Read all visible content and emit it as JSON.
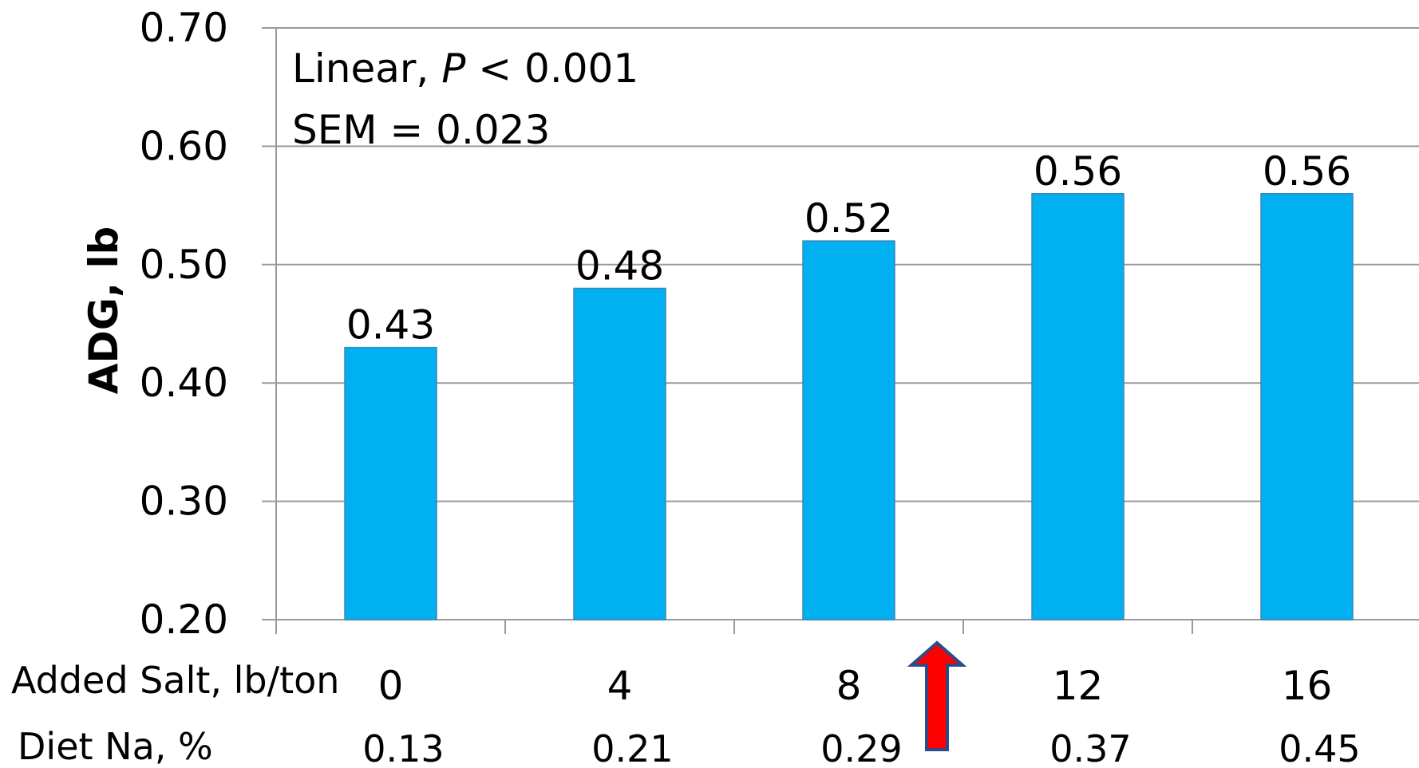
{
  "chart_data": {
    "type": "bar",
    "categories": [
      "0",
      "4",
      "8",
      "12",
      "16"
    ],
    "values": [
      0.43,
      0.48,
      0.52,
      0.56,
      0.56
    ],
    "value_labels": [
      "0.43",
      "0.48",
      "0.52",
      "0.56",
      "0.56"
    ],
    "secondary_categories": [
      "0.13",
      "0.21",
      "0.29",
      "0.37",
      "0.45"
    ],
    "row_labels": {
      "primary": "Added Salt, lb/ton",
      "secondary": "Diet Na, %"
    },
    "ylabel": "ADG, lb",
    "ylim": [
      0.2,
      0.7
    ],
    "yticks": [
      0.2,
      0.3,
      0.4,
      0.5,
      0.6,
      0.7
    ],
    "ytick_labels": [
      "0.20",
      "0.30",
      "0.40",
      "0.50",
      "0.60",
      "0.70"
    ],
    "annotations": {
      "line1_prefix": "Linear, ",
      "line1_p": "P",
      "line1_suffix": " < 0.001",
      "line2": "SEM = 0.023"
    },
    "highlight_category": "12",
    "grid": true,
    "colors": {
      "bar": "#00B0F0",
      "bar_edge": "#3A87B8",
      "grid": "#9A9A9A",
      "arrow": "#FF0000",
      "arrow_edge": "#2F4A87"
    }
  }
}
